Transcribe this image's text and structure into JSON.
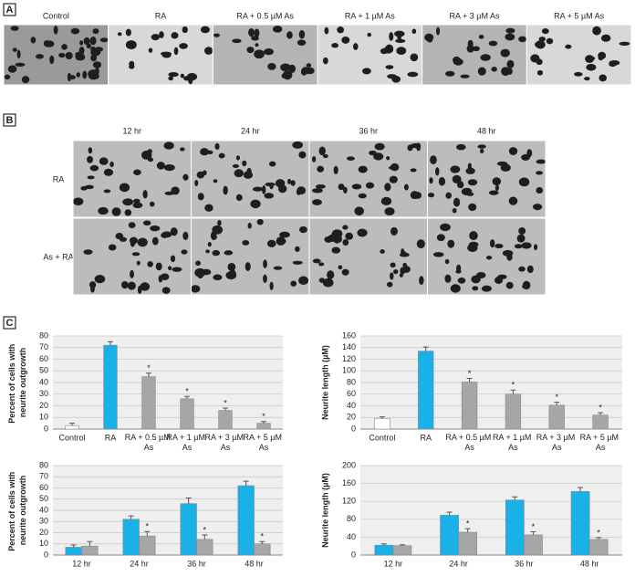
{
  "panel_labels": [
    "A",
    "B",
    "C"
  ],
  "panel_a_titles": [
    "Control",
    "RA",
    "RA + 0.5 µM As",
    "RA + 1 µM As",
    "RA + 3 µM As",
    "RA + 5 µM As"
  ],
  "panel_b_columns": [
    "12 hr",
    "24 hr",
    "36 hr",
    "48 hr"
  ],
  "panel_b_rows": [
    "RA",
    "As + RA"
  ],
  "chart_data": [
    {
      "type": "bar",
      "ylabel": "Percent of cells with neurite outgrowth",
      "categories": [
        "Control",
        "RA",
        "RA + 0.5 µM As",
        "RA + 1 µM As",
        "RA + 3 µM As",
        "RA + 5 µM As"
      ],
      "values": [
        3,
        72,
        45,
        26,
        16,
        5
      ],
      "errors": [
        2,
        3,
        3,
        2,
        2,
        1.5
      ],
      "colors": [
        "#ffffff",
        "#1ab0e8",
        "#a6a6a6",
        "#a6a6a6",
        "#a6a6a6",
        "#a6a6a6"
      ],
      "significance": [
        null,
        null,
        "*",
        "*",
        "*",
        "*"
      ],
      "ylim": [
        0,
        80
      ],
      "yticks": [
        0,
        10,
        20,
        30,
        40,
        50,
        60,
        70,
        80
      ],
      "grid": true
    },
    {
      "type": "bar",
      "ylabel": "Neurite length (µM)",
      "categories": [
        "Control",
        "RA",
        "RA + 0.5 µM As",
        "RA + 1 µM As",
        "RA + 3 µM As",
        "RA + 5 µM As"
      ],
      "values": [
        18,
        134,
        81,
        60,
        41,
        24
      ],
      "errors": [
        3,
        7,
        6,
        7,
        5,
        4
      ],
      "colors": [
        "#ffffff",
        "#1ab0e8",
        "#a6a6a6",
        "#a6a6a6",
        "#a6a6a6",
        "#a6a6a6"
      ],
      "significance": [
        null,
        null,
        "*",
        "*",
        "*",
        "*"
      ],
      "ylim": [
        0,
        160
      ],
      "yticks": [
        0,
        20,
        40,
        60,
        80,
        100,
        120,
        140,
        160
      ],
      "grid": true
    },
    {
      "type": "grouped_bar",
      "ylabel": "Percent of cells with neurite outgrowth",
      "categories": [
        "12 hr",
        "24 hr",
        "36 hr",
        "48 hr"
      ],
      "series": [
        {
          "color": "#1ab0e8",
          "values": [
            7,
            32,
            46,
            62
          ],
          "errors": [
            2,
            3,
            5,
            4
          ]
        },
        {
          "color": "#a6a6a6",
          "values": [
            8,
            17,
            14,
            10
          ],
          "errors": [
            4,
            4,
            4,
            2
          ],
          "significance": [
            null,
            "*",
            "*",
            "*"
          ]
        }
      ],
      "ylim": [
        0,
        80
      ],
      "yticks": [
        0,
        10,
        20,
        30,
        40,
        50,
        60,
        70,
        80
      ],
      "grid": true
    },
    {
      "type": "grouped_bar",
      "ylabel": "Neurite length (µM)",
      "categories": [
        "12 hr",
        "24 hr",
        "36 hr",
        "48 hr"
      ],
      "series": [
        {
          "color": "#1ab0e8",
          "values": [
            22,
            89,
            123,
            142
          ],
          "errors": [
            3,
            7,
            7,
            9
          ]
        },
        {
          "color": "#a6a6a6",
          "values": [
            21,
            51,
            45,
            35
          ],
          "errors": [
            2,
            8,
            7,
            4
          ],
          "significance": [
            null,
            "*",
            "*",
            "*"
          ]
        }
      ],
      "ylim": [
        0,
        200
      ],
      "yticks": [
        0,
        40,
        80,
        120,
        160,
        200
      ],
      "grid": true
    }
  ]
}
